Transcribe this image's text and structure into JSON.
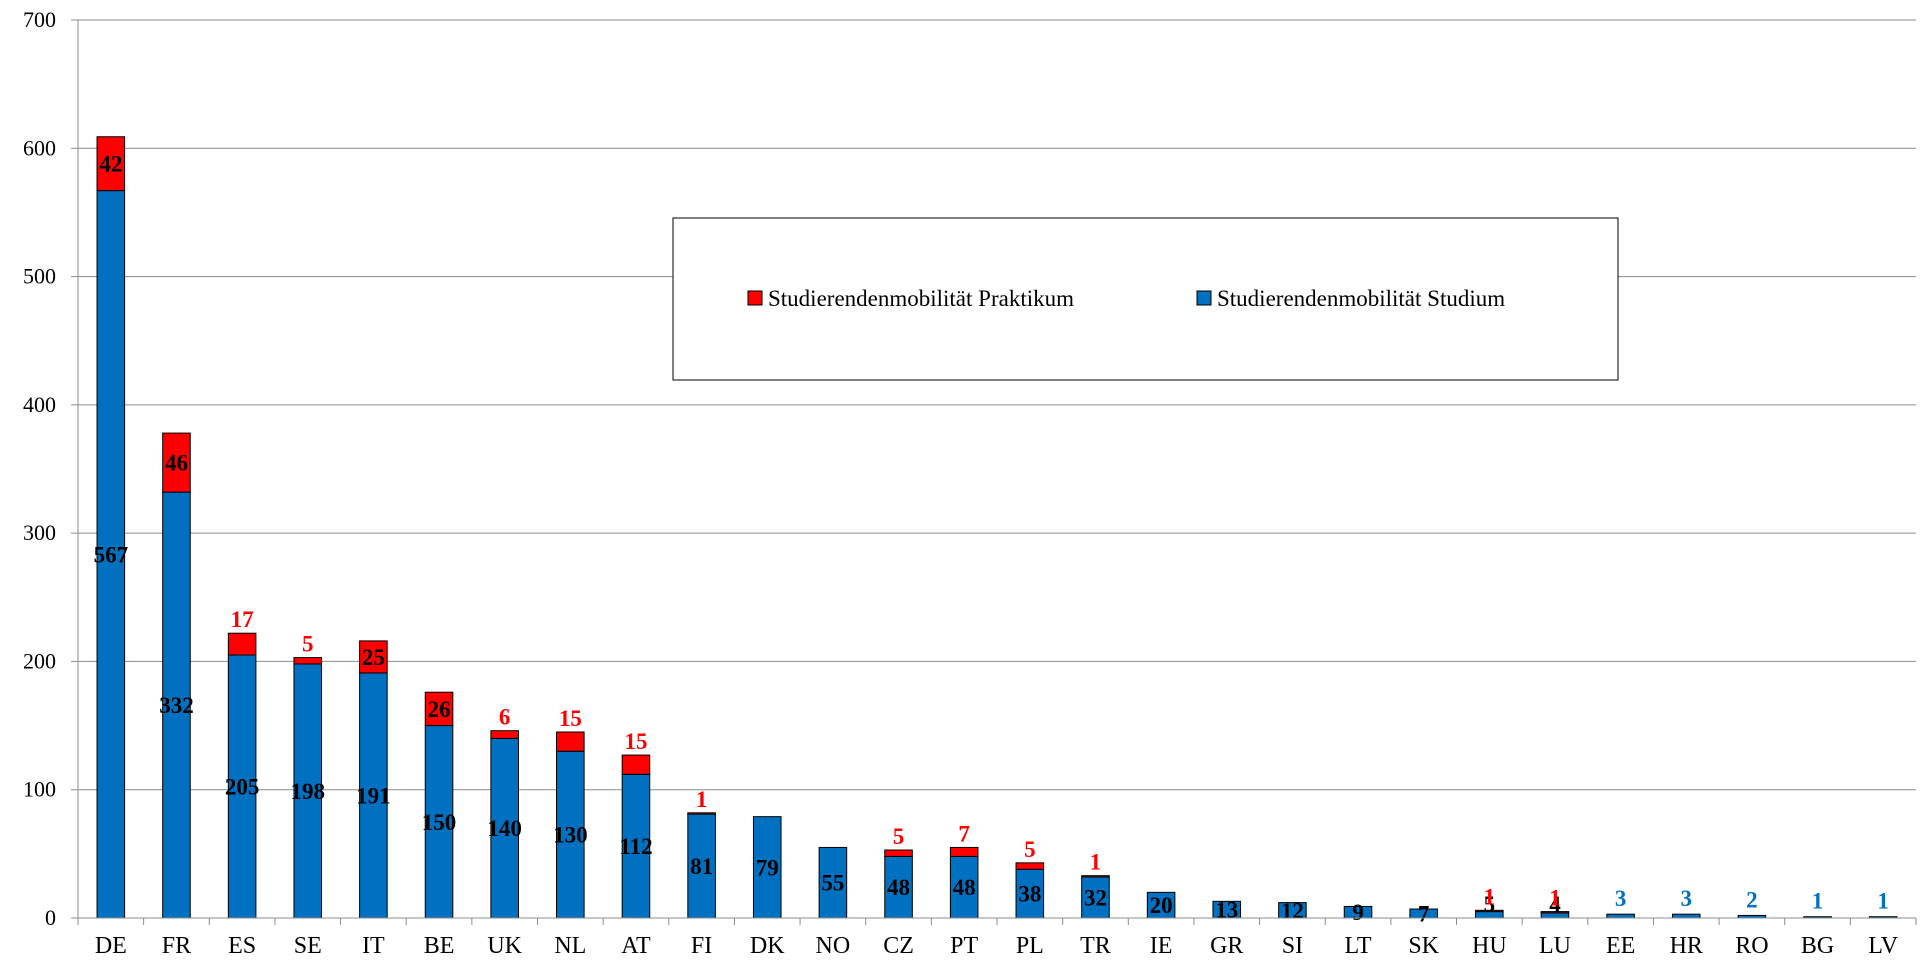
{
  "chart_data": {
    "type": "bar",
    "stacked": true,
    "categories": [
      "DE",
      "FR",
      "ES",
      "SE",
      "IT",
      "BE",
      "UK",
      "NL",
      "AT",
      "FI",
      "DK",
      "NO",
      "CZ",
      "PT",
      "PL",
      "TR",
      "IE",
      "GR",
      "SI",
      "LT",
      "SK",
      "HU",
      "LU",
      "EE",
      "HR",
      "RO",
      "BG",
      "LV"
    ],
    "series": [
      {
        "name": "Studierendenmobilität Studium",
        "color": "#0070C0",
        "values": [
          567,
          332,
          205,
          198,
          191,
          150,
          140,
          130,
          112,
          81,
          79,
          55,
          48,
          48,
          38,
          32,
          20,
          13,
          12,
          9,
          7,
          5,
          4,
          3,
          3,
          2,
          1,
          1
        ],
        "labels": [
          "567",
          "332",
          "205",
          "198",
          "191",
          "150",
          "140",
          "130",
          "112",
          "81",
          "79",
          "55",
          "48",
          "48",
          "38",
          "32",
          "20",
          "13",
          "12",
          "9",
          "7",
          "5",
          "4",
          "3",
          "3",
          "2",
          "1",
          "1"
        ]
      },
      {
        "name": "Studierendenmobilität Praktikum",
        "color": "#FF0000",
        "values": [
          42,
          46,
          17,
          5,
          25,
          26,
          6,
          15,
          15,
          1,
          0,
          0,
          5,
          7,
          5,
          1,
          0,
          0,
          0,
          0,
          0,
          1,
          1,
          0,
          0,
          0,
          0,
          0
        ],
        "labels": [
          "42",
          "46",
          "17",
          "5",
          "25",
          "26",
          "6",
          "15",
          "15",
          "1",
          "",
          "",
          "5",
          "7",
          "5",
          "1",
          "",
          "",
          "",
          "",
          "",
          "1",
          "1",
          "",
          "",
          "",
          "",
          ""
        ]
      }
    ],
    "ylim": [
      0,
      700
    ],
    "yticks": [
      "0",
      "100",
      "200",
      "300",
      "400",
      "500",
      "600",
      "700"
    ],
    "grid": true,
    "legend": "top-center",
    "title": "",
    "xlabel": "",
    "ylabel": ""
  }
}
